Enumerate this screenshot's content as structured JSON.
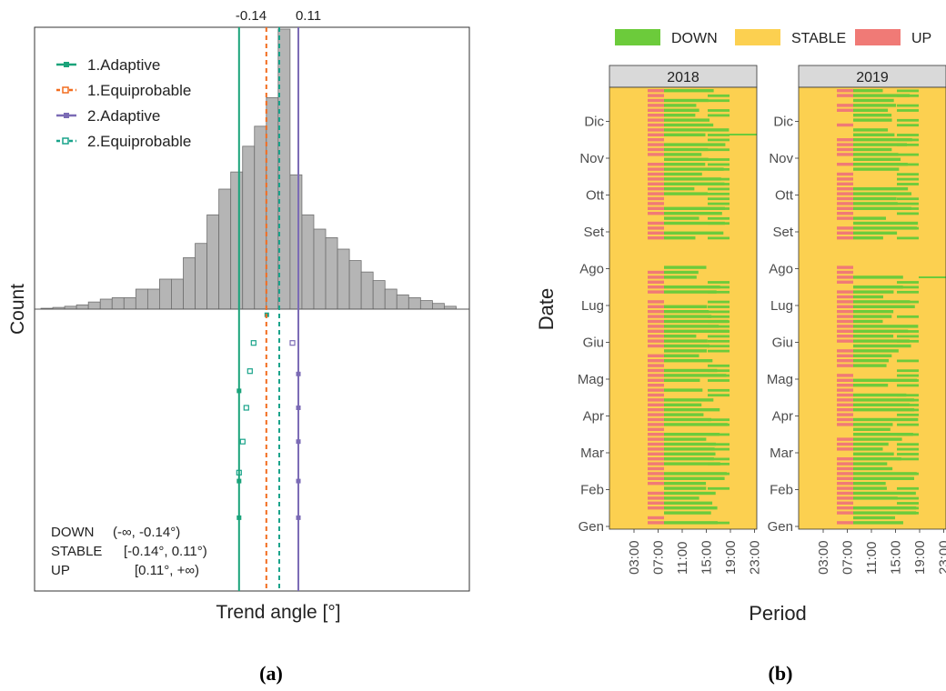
{
  "colors": {
    "adaptive1": "#1aa37a",
    "equi1": "#f26d1f",
    "adaptive2": "#7b6bb5",
    "equi2": "#19a38a",
    "bar": "#b5b5b5",
    "down": "#6ccb3b",
    "stable": "#fcd050",
    "up": "#f07a76",
    "strip": "#d9d9d9"
  },
  "captions": {
    "a": "(a)",
    "b": "(b)"
  },
  "chart_data": [
    {
      "type": "bar",
      "xlabel": "Trend angle [°]",
      "ylabel": "Count",
      "thresholds": {
        "lower": {
          "value": -0.14,
          "label": "-0.14"
        },
        "upper": {
          "value": 0.11,
          "label": "0.11"
        }
      },
      "legend_position": "top-left",
      "legend": [
        {
          "label": "1.Adaptive",
          "style": "solid",
          "color_key": "adaptive1"
        },
        {
          "label": "1.Equiprobable",
          "style": "dashed",
          "color_key": "equi1"
        },
        {
          "label": "2.Adaptive",
          "style": "solid",
          "color_key": "adaptive2"
        },
        {
          "label": "2.Equiprobable",
          "style": "dashed",
          "color_key": "equi2"
        }
      ],
      "classes": [
        {
          "name": "DOWN",
          "range": "(-∞, -0.14°)"
        },
        {
          "name": "STABLE",
          "range": "[-0.14°, 0.11°)"
        },
        {
          "name": "UP",
          "range": "[0.11°, +∞)"
        }
      ],
      "x": [
        -0.95,
        -0.9,
        -0.85,
        -0.8,
        -0.75,
        -0.7,
        -0.65,
        -0.6,
        -0.55,
        -0.5,
        -0.45,
        -0.4,
        -0.35,
        -0.3,
        -0.25,
        -0.2,
        -0.15,
        -0.1,
        -0.05,
        0.0,
        0.05,
        0.1,
        0.15,
        0.2,
        0.25,
        0.3,
        0.35,
        0.4,
        0.45,
        0.5,
        0.55,
        0.6,
        0.65,
        0.7,
        0.75
      ],
      "values": [
        0.3,
        0.6,
        1,
        1.5,
        2.5,
        3.5,
        4,
        4,
        7,
        7,
        10.5,
        10.5,
        18,
        23,
        33,
        42,
        48,
        57,
        64,
        74,
        98,
        47,
        33,
        28,
        25,
        21,
        17,
        13,
        10,
        7,
        5,
        4,
        3,
        2,
        1
      ],
      "iteration_markers": {
        "adaptive1": [
          0.29,
          0.61,
          0.74
        ],
        "equi1_open": [
          0.12,
          0.22,
          0.35,
          0.47,
          0.58
        ],
        "adaptive2": [
          0.23,
          0.35,
          0.47,
          0.61,
          0.74
        ],
        "adaptive2_open": [
          0.12
        ],
        "equi2": [
          0.02
        ]
      }
    },
    {
      "type": "heatmap",
      "xlabel": "Period",
      "ylabel": "Date",
      "panels": [
        "2018",
        "2019"
      ],
      "x_ticks": [
        "03:00",
        "07:00",
        "11:00",
        "15:00",
        "19:00",
        "23:00"
      ],
      "y_ticks": [
        "Gen",
        "Feb",
        "Mar",
        "Apr",
        "Mag",
        "Giu",
        "Lug",
        "Ago",
        "Set",
        "Ott",
        "Nov",
        "Dic"
      ],
      "categories": [
        "DOWN",
        "STABLE",
        "UP"
      ],
      "legend_position": "top"
    }
  ]
}
